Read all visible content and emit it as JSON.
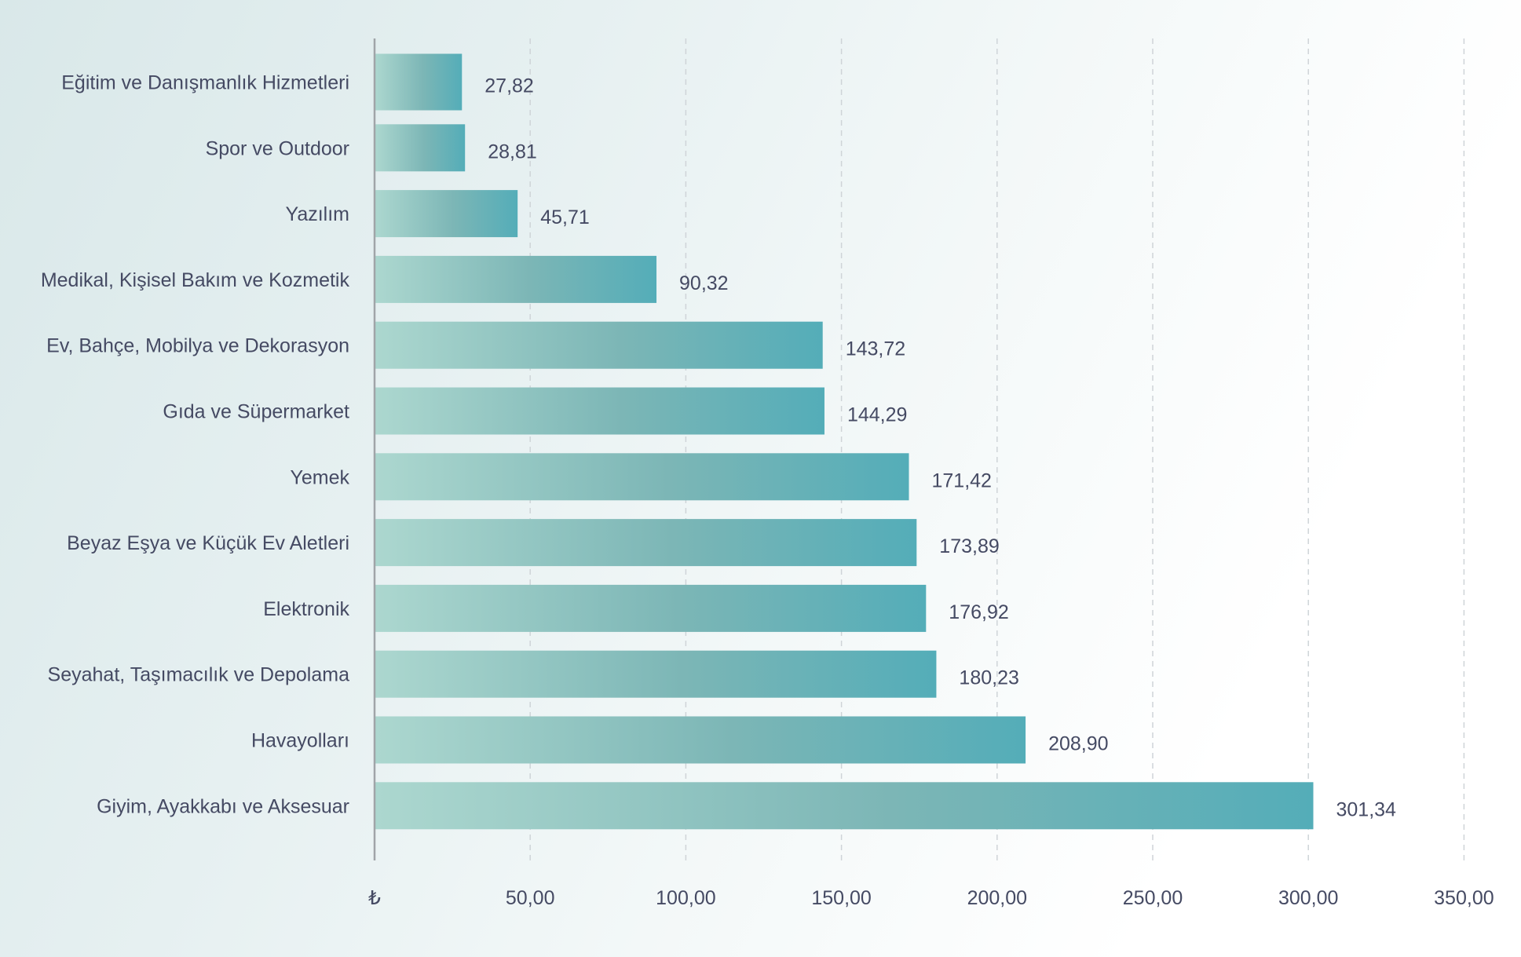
{
  "chart_data": {
    "type": "bar",
    "orientation": "horizontal",
    "title": "",
    "xlabel": "",
    "ylabel": "",
    "currency_symbol": "₺",
    "xlim": [
      0,
      350
    ],
    "x_ticks": [
      0,
      50,
      100,
      150,
      200,
      250,
      300,
      350
    ],
    "x_tick_labels": [
      "₺",
      "50,00",
      "100,00",
      "150,00",
      "200,00",
      "250,00",
      "300,00",
      "350,00"
    ],
    "grid": "vertical-dashed",
    "legend": "none",
    "categories": [
      "Eğitim ve Danışmanlık Hizmetleri",
      "Spor ve Outdoor",
      "Yazılım",
      "Medikal, Kişisel Bakım ve Kozmetik",
      "Ev, Bahçe, Mobilya ve Dekorasyon",
      "Gıda ve Süpermarket",
      "Yemek",
      "Beyaz Eşya ve Küçük Ev Aletleri",
      "Elektronik",
      "Seyahat, Taşımacılık ve Depolama",
      "Havayolları",
      "Giyim, Ayakkabı ve Aksesuar"
    ],
    "values": [
      27.82,
      28.81,
      45.71,
      90.32,
      143.72,
      144.29,
      171.42,
      173.89,
      176.92,
      180.23,
      208.9,
      301.34
    ],
    "value_labels": [
      "27,82",
      "28,81",
      "45,71",
      "90,32",
      "143,72",
      "144,29",
      "171,42",
      "173,89",
      "176,92",
      "180,23",
      "208,90",
      "301,34"
    ],
    "colors": {
      "bar_gradient_start": "#acd7cf",
      "bar_gradient_mid": "#7cb6b6",
      "bar_gradient_end": "#54adb8",
      "text": "#454a63",
      "gridline": "#cfd4d8",
      "axis": "#a0a4a8"
    }
  }
}
